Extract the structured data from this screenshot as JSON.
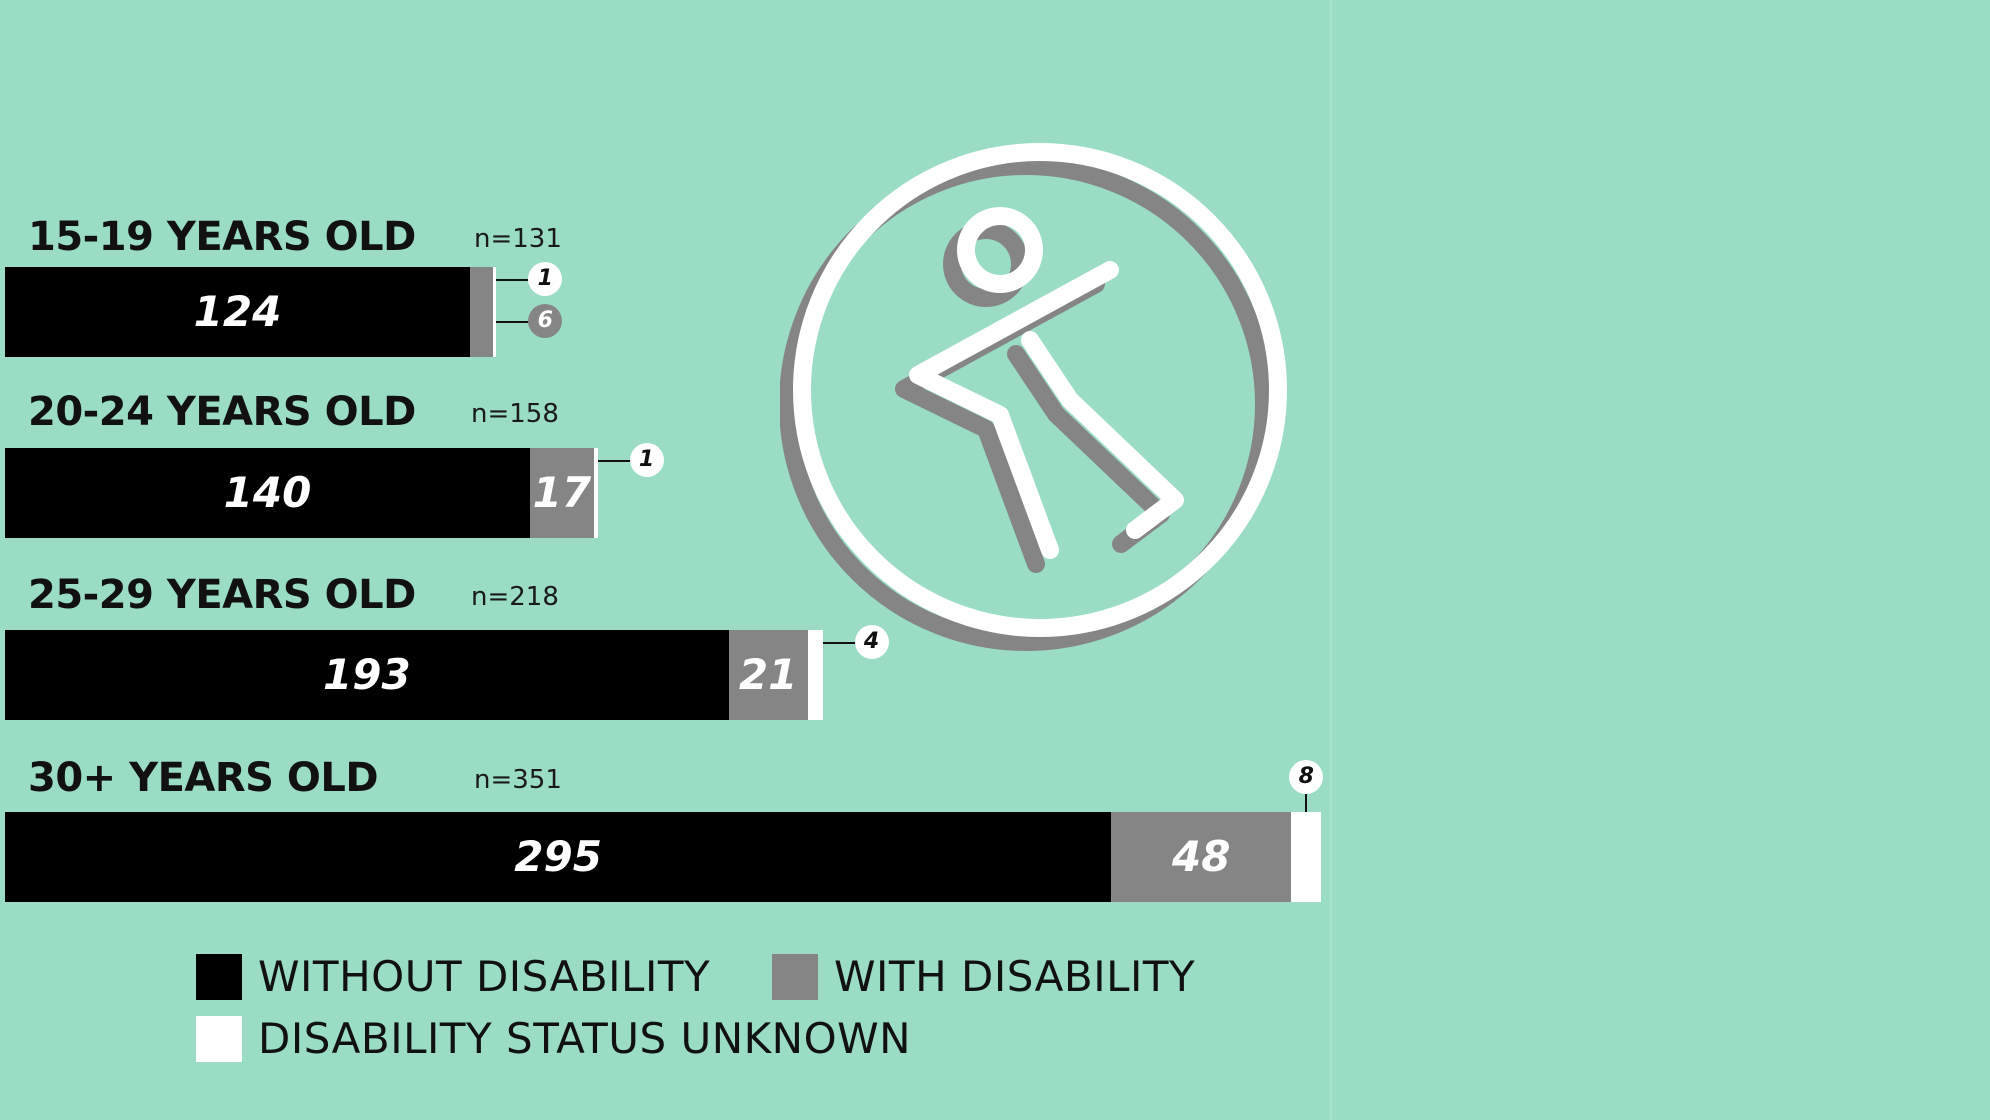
{
  "chart_data": {
    "type": "bar",
    "orientation": "horizontal",
    "stacked": true,
    "categories": [
      "15-19 YEARS OLD",
      "20-24 YEARS OLD",
      "25-29 YEARS OLD",
      "30+ YEARS OLD"
    ],
    "totals": [
      "n=131",
      "n=158",
      "n=218",
      "n=351"
    ],
    "series": [
      {
        "name": "WITHOUT DISABILITY",
        "color": "#000000",
        "values": [
          124,
          140,
          193,
          295
        ]
      },
      {
        "name": "WITH DISABILITY",
        "color": "#858585",
        "values": [
          6,
          17,
          21,
          48
        ]
      },
      {
        "name": "DISABILITY STATUS UNKNOWN",
        "color": "#ffffff",
        "values": [
          1,
          1,
          4,
          8
        ]
      }
    ],
    "legend_position": "bottom"
  },
  "icon": "walking-person-accessibility-icon"
}
